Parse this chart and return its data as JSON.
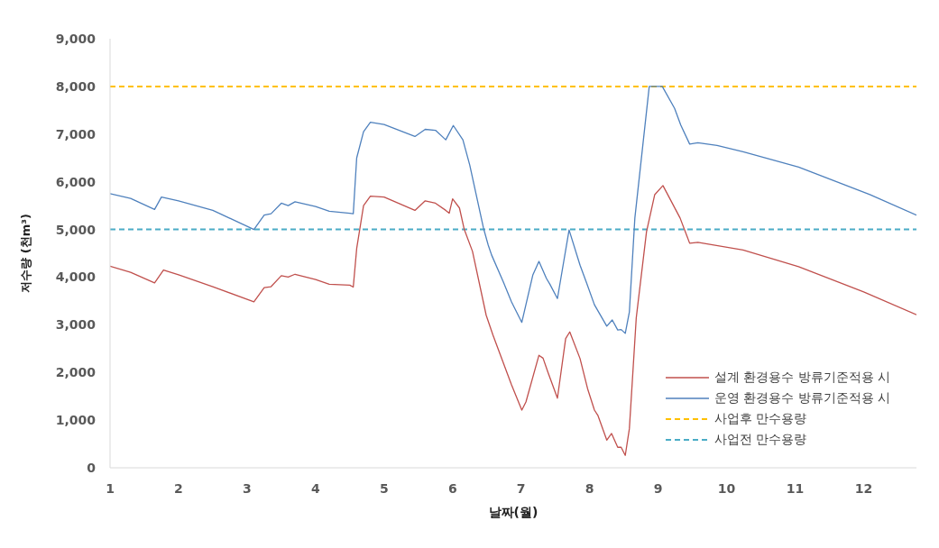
{
  "chart_data": {
    "type": "line",
    "xlabel": "날짜(월)",
    "ylabel": "저수량 (천m³)",
    "xlim": [
      1,
      12.77
    ],
    "xticks": [
      1,
      2,
      3,
      4,
      5,
      6,
      7,
      8,
      9,
      10,
      11,
      12
    ],
    "ylim": [
      0,
      9000
    ],
    "yticks": [
      0,
      {
        "value": 1000,
        "label": "1,000"
      },
      {
        "value": 2000,
        "label": "2,000"
      },
      {
        "value": 3000,
        "label": "3,000"
      },
      {
        "value": 4000,
        "label": "4,000"
      },
      {
        "value": 5000,
        "label": "5,000"
      },
      {
        "value": 6000,
        "label": "6,000"
      },
      {
        "value": 7000,
        "label": "7,000"
      },
      {
        "value": 8000,
        "label": "8,000"
      },
      {
        "value": 9000,
        "label": "9,000"
      }
    ],
    "grid": false,
    "legend": "bottom right",
    "marker": "none",
    "line_style": "solid",
    "series": [
      {
        "name": "설계 환경용수 방류기준적용 시",
        "color": "#c0504d",
        "x": [
          1,
          1.3,
          1.65,
          1.78,
          2,
          2.5,
          3.1,
          3.25,
          3.35,
          3.5,
          3.6,
          3.7,
          4,
          4.2,
          4.5,
          4.55,
          4.6,
          4.7,
          4.8,
          5,
          5.45,
          5.6,
          5.75,
          5.9,
          5.95,
          6,
          6.1,
          6.17,
          6.29,
          6.49,
          6.59,
          6.86,
          7.01,
          7.07,
          7.26,
          7.32,
          7.39,
          7.53,
          7.65,
          7.71,
          7.86,
          7.97,
          8.07,
          8.12,
          8.25,
          8.32,
          8.41,
          8.46,
          8.52,
          8.58,
          8.68,
          8.83,
          8.95,
          9.07,
          9.32,
          9.46,
          9.58,
          10.24,
          11.05,
          12,
          12.77
        ],
        "values": [
          4230,
          4100,
          3880,
          4150,
          4050,
          3800,
          3480,
          3780,
          3800,
          4030,
          4000,
          4060,
          3950,
          3850,
          3830,
          3790,
          4600,
          5500,
          5700,
          5680,
          5400,
          5600,
          5550,
          5400,
          5340,
          5640,
          5450,
          5000,
          4540,
          3200,
          2780,
          1740,
          1210,
          1380,
          2360,
          2300,
          2010,
          1460,
          2710,
          2850,
          2290,
          1660,
          1210,
          1100,
          580,
          720,
          430,
          430,
          260,
          820,
          3140,
          4950,
          5730,
          5920,
          5240,
          4710,
          4730,
          4570,
          4220,
          3690,
          3210
        ]
      },
      {
        "name": "운영 환경용수 방류기준적용 시",
        "color": "#4f81bd",
        "x": [
          1,
          1.3,
          1.65,
          1.75,
          2,
          2.5,
          3.1,
          3.25,
          3.35,
          3.5,
          3.6,
          3.7,
          4,
          4.2,
          4.5,
          4.55,
          4.6,
          4.7,
          4.8,
          5,
          5.45,
          5.6,
          5.75,
          5.9,
          6.01,
          6.15,
          6.25,
          6.45,
          6.52,
          6.57,
          6.74,
          6.86,
          7.01,
          7.17,
          7.26,
          7.37,
          7.42,
          7.53,
          7.7,
          7.86,
          7.95,
          8.07,
          8.25,
          8.33,
          8.41,
          8.46,
          8.52,
          8.58,
          8.66,
          8.87,
          9.06,
          9.24,
          9.33,
          9.46,
          9.58,
          9.86,
          10.24,
          11.05,
          12.09,
          12.77
        ],
        "values": [
          5750,
          5650,
          5420,
          5680,
          5600,
          5400,
          5000,
          5300,
          5330,
          5550,
          5500,
          5580,
          5480,
          5380,
          5340,
          5330,
          6500,
          7050,
          7250,
          7200,
          6950,
          7100,
          7080,
          6880,
          7180,
          6880,
          6350,
          5030,
          4670,
          4460,
          3900,
          3480,
          3050,
          4040,
          4330,
          3970,
          3850,
          3550,
          4990,
          4250,
          3900,
          3420,
          2970,
          3100,
          2890,
          2900,
          2820,
          3270,
          5240,
          8000,
          8000,
          7540,
          7190,
          6790,
          6820,
          6760,
          6630,
          6310,
          5730,
          5300
        ]
      }
    ],
    "ref_lines": [
      {
        "axis": "y",
        "value": 8000,
        "label": "사업후 만수용량",
        "color": "#ffc000",
        "line_style": "dashed"
      },
      {
        "axis": "y",
        "value": 5000,
        "label": "사업전 만수용량",
        "color": "#4bacc6",
        "line_style": "dashed"
      }
    ]
  }
}
